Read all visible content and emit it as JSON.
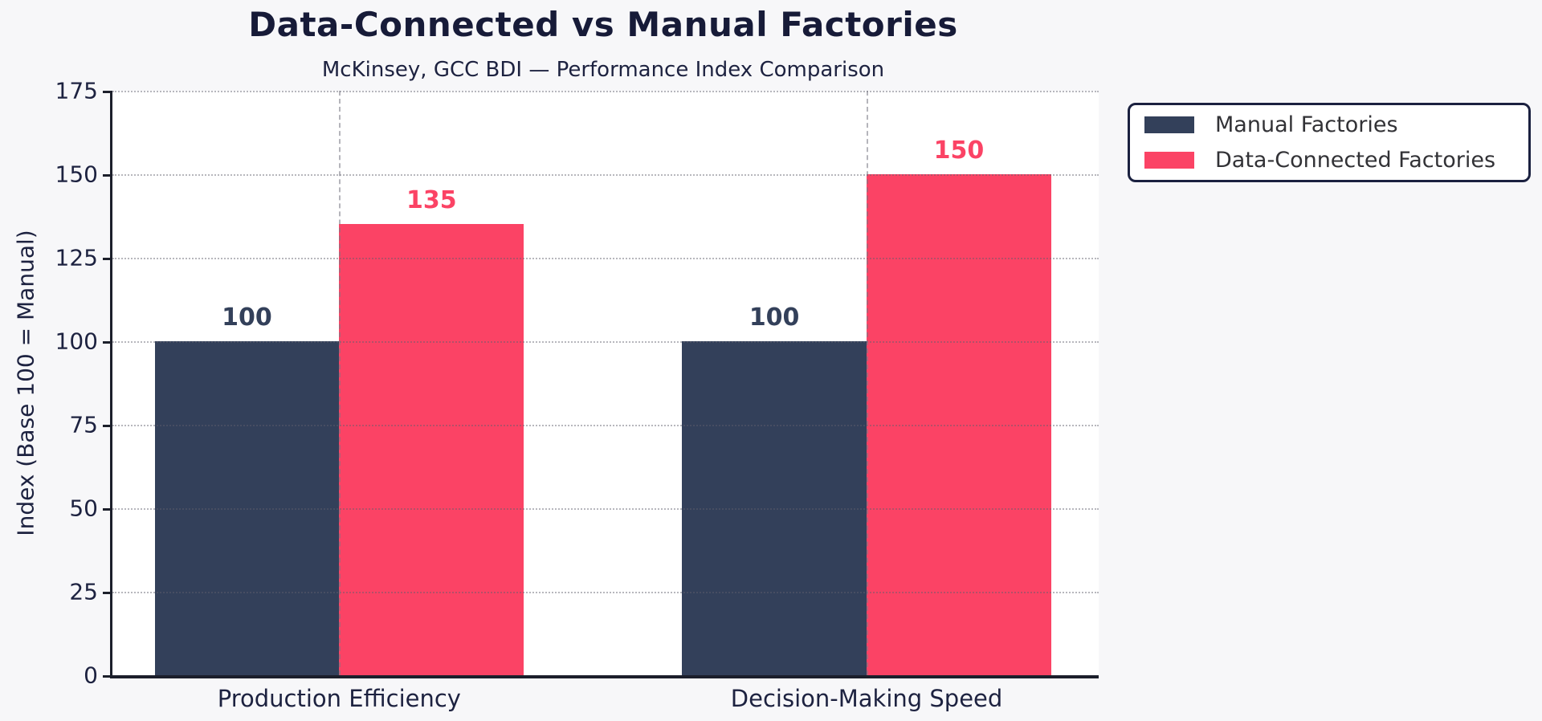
{
  "chart_data": {
    "type": "bar",
    "title": "Data-Connected vs Manual Factories",
    "subtitle": "McKinsey, GCC BDI — Performance Index Comparison",
    "ylabel": "Index (Base 100 = Manual)",
    "xlabel": "",
    "categories": [
      "Production Efficiency",
      "Decision-Making Speed"
    ],
    "series": [
      {
        "name": "Manual Factories",
        "color": "#33405a",
        "values": [
          100,
          100
        ]
      },
      {
        "name": "Data-Connected Factories",
        "color": "#fb4365",
        "values": [
          135,
          150
        ]
      }
    ],
    "ylim": [
      0,
      175
    ],
    "yticks": [
      0,
      25,
      50,
      75,
      100,
      125,
      150,
      175
    ],
    "xlim": [
      -0.43,
      1.44
    ],
    "bar_width": 0.35,
    "grid": {
      "horizontal": "dotted",
      "vertical": "dashed-at-category-centers",
      "on": true
    },
    "legend": {
      "position": "upper-right-outside-plot",
      "entries": [
        "Manual Factories",
        "Data-Connected Factories"
      ]
    },
    "value_labels_shown": true
  },
  "colors": {
    "figure_background": "#f7f7f9",
    "plot_background": "#ffffff",
    "axis_spine": "#1c1f2b",
    "tick_text": "#1d2240",
    "title_text": "#171b38",
    "series_manual": "#33405a",
    "series_data_connected": "#fb4365",
    "legend_border": "#1b2140",
    "legend_text": "#323236"
  }
}
